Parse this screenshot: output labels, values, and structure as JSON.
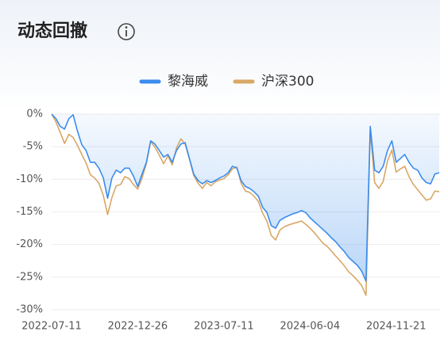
{
  "chart_data": {
    "type": "line",
    "title": "动态回撤",
    "x": [
      "2022-07-11",
      null,
      null,
      null,
      null,
      null,
      null,
      null,
      null,
      null,
      null,
      null,
      null,
      null,
      null,
      null,
      null,
      null,
      null,
      null,
      "2022-12-26",
      null,
      null,
      null,
      null,
      null,
      null,
      null,
      null,
      null,
      null,
      null,
      null,
      null,
      null,
      null,
      null,
      null,
      null,
      null,
      "2023-07-11",
      null,
      null,
      null,
      null,
      null,
      null,
      null,
      null,
      null,
      null,
      null,
      null,
      null,
      null,
      null,
      null,
      null,
      null,
      null,
      "2024-06-04",
      null,
      null,
      null,
      null,
      null,
      null,
      null,
      null,
      null,
      null,
      null,
      null,
      null,
      null,
      null,
      null,
      null,
      null,
      null,
      "2024-11-21",
      null,
      null,
      null,
      null,
      null,
      null,
      null,
      null,
      null,
      null
    ],
    "series": [
      {
        "name": "黎海威",
        "color": "#3b8ced",
        "area": true,
        "values": [
          0,
          -0.7,
          -1.9,
          -2.3,
          -0.7,
          -0.1,
          -2.6,
          -4.7,
          -5.6,
          -7.4,
          -7.4,
          -8.3,
          -9.8,
          -12.9,
          -9.8,
          -8.6,
          -9.0,
          -8.3,
          -8.3,
          -9.5,
          -11.1,
          -9.2,
          -7.4,
          -4.1,
          -4.6,
          -5.6,
          -6.6,
          -6.2,
          -7.4,
          -5.6,
          -4.6,
          -4.4,
          -6.8,
          -9.2,
          -10.2,
          -10.7,
          -10.2,
          -10.5,
          -10.2,
          -9.8,
          -9.5,
          -9.0,
          -8.0,
          -8.3,
          -10.2,
          -11.1,
          -11.4,
          -11.9,
          -12.6,
          -14.3,
          -15.1,
          -17.1,
          -17.5,
          -16.3,
          -15.9,
          -15.6,
          -15.3,
          -15.1,
          -14.8,
          -15.1,
          -15.9,
          -16.5,
          -17.1,
          -17.7,
          -18.3,
          -19.0,
          -19.6,
          -20.4,
          -21.1,
          -22.0,
          -22.6,
          -23.2,
          -24.1,
          -25.6,
          -1.9,
          -8.6,
          -9.0,
          -8.0,
          -5.6,
          -4.1,
          -7.4,
          -6.8,
          -6.2,
          -7.4,
          -8.3,
          -8.6,
          -9.8,
          -10.5,
          -10.7,
          -9.2,
          -9.0
        ]
      },
      {
        "name": "沪深300",
        "color": "#d9a766",
        "area": false,
        "values": [
          0,
          -1.2,
          -2.8,
          -4.5,
          -3.1,
          -3.6,
          -4.8,
          -6.2,
          -7.5,
          -9.3,
          -9.8,
          -10.6,
          -12.5,
          -15.4,
          -12.8,
          -11.0,
          -10.8,
          -9.6,
          -9.9,
          -10.8,
          -11.5,
          -9.8,
          -7.6,
          -4.2,
          -5.1,
          -6.3,
          -7.6,
          -6.4,
          -7.8,
          -5.2,
          -3.8,
          -4.6,
          -6.9,
          -9.4,
          -10.6,
          -11.4,
          -10.5,
          -11.0,
          -10.4,
          -10.1,
          -9.9,
          -9.3,
          -8.4,
          -8.1,
          -10.6,
          -11.8,
          -12.0,
          -12.6,
          -13.4,
          -15.2,
          -16.4,
          -18.6,
          -19.3,
          -17.8,
          -17.3,
          -17.0,
          -16.8,
          -16.6,
          -16.4,
          -16.9,
          -17.5,
          -18.2,
          -19.0,
          -19.8,
          -20.3,
          -21.0,
          -21.8,
          -22.5,
          -23.3,
          -24.2,
          -24.8,
          -25.5,
          -26.3,
          -27.8,
          -2.5,
          -10.5,
          -11.4,
          -10.3,
          -7.2,
          -5.5,
          -8.9,
          -8.4,
          -8.0,
          -9.6,
          -10.8,
          -11.6,
          -12.4,
          -13.2,
          -13.0,
          -11.8,
          -11.9
        ]
      }
    ],
    "ylim": [
      -30,
      0
    ],
    "yticks": [
      {
        "value": 0,
        "label": "0%"
      },
      {
        "value": -5,
        "label": "-5%"
      },
      {
        "value": -10,
        "label": "-10%"
      },
      {
        "value": -15,
        "label": "-15%"
      },
      {
        "value": -20,
        "label": "-20%"
      },
      {
        "value": -25,
        "label": "-25%"
      },
      {
        "value": -30,
        "label": "-30%"
      }
    ],
    "grid": true
  }
}
